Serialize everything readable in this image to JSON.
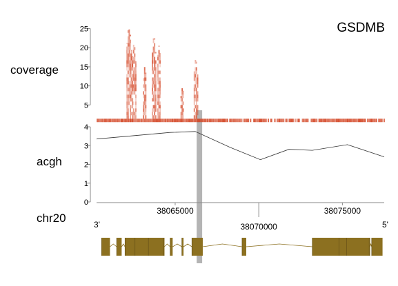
{
  "chart_data": [
    {
      "type": "heatmap",
      "track_label": "coverage",
      "gene_label": "GSDMB",
      "ylim": [
        0,
        26
      ],
      "yticks": [
        5,
        10,
        15,
        20,
        25
      ],
      "color": "#d2401e",
      "peaks": [
        {
          "x_center": 38062200,
          "height": 25.5,
          "width": 150
        },
        {
          "x_center": 38062500,
          "height": 21,
          "width": 120
        },
        {
          "x_center": 38063150,
          "height": 15,
          "width": 90
        },
        {
          "x_center": 38063700,
          "height": 23,
          "width": 120
        },
        {
          "x_center": 38064000,
          "height": 20.5,
          "width": 110
        },
        {
          "x_center": 38065400,
          "height": 9.5,
          "width": 90
        },
        {
          "x_center": 38066200,
          "height": 17,
          "width": 110
        }
      ]
    },
    {
      "type": "line",
      "track_label": "acgh",
      "ylim": [
        0,
        4
      ],
      "yticks": [
        0,
        1,
        2,
        3,
        4
      ],
      "color": "#333333",
      "x": [
        38060300,
        38064700,
        38066200,
        38068300,
        38070100,
        38071800,
        38073200,
        38075300,
        38077500
      ],
      "y": [
        3.35,
        3.7,
        3.75,
        2.9,
        2.25,
        2.8,
        2.75,
        3.05,
        2.4
      ]
    },
    {
      "type": "gene-model",
      "chromosome": "chr20",
      "xlim": [
        38060300,
        38077500
      ],
      "tick_labels": [
        "38065000",
        "38070000",
        "38075000"
      ],
      "tick_positions": [
        38065000,
        38070000,
        38075000
      ],
      "strand_start": "3'",
      "strand_end": "5'",
      "exon_color": "#8c7020",
      "intron_color": "#8c7020",
      "highlight_x": 38066450,
      "highlight_color": "#b4b4b4",
      "exons": [
        [
          38060600,
          38061100
        ],
        [
          38061500,
          38061800
        ],
        [
          38062000,
          38062600
        ],
        [
          38062600,
          38063400
        ],
        [
          38063400,
          38064300
        ],
        [
          38064300,
          38064350
        ],
        [
          38064700,
          38064850
        ],
        [
          38065400,
          38065500
        ],
        [
          38066000,
          38066650
        ],
        [
          38069000,
          38069250
        ],
        [
          38073200,
          38074800
        ],
        [
          38074800,
          38075250
        ],
        [
          38075250,
          38076600
        ],
        [
          38076600,
          38076650
        ],
        [
          38076750,
          38077400
        ]
      ]
    }
  ]
}
